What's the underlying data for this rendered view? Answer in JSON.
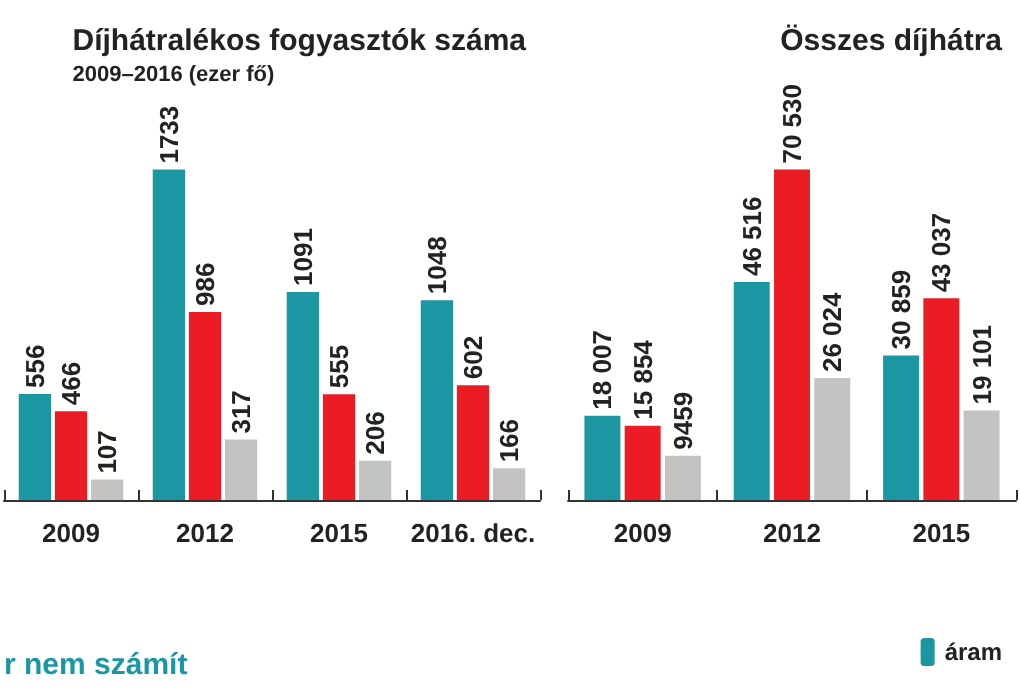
{
  "chart_data": [
    {
      "type": "bar",
      "title": "Díjhátralékos fogyasztók száma",
      "subtitle": "2009–2016 (ezer fő)",
      "categories": [
        "2009",
        "2012",
        "2015",
        "2016. dec."
      ],
      "data_labels": true,
      "annotations": [
        "r nem számít"
      ],
      "series": [
        {
          "color": "#1a97a3",
          "values": [
            556,
            1733,
            1091,
            1048
          ]
        },
        {
          "color": "#ec1c24",
          "values": [
            466,
            986,
            555,
            602
          ]
        },
        {
          "color": "#c3c3c3",
          "values": [
            107,
            317,
            206,
            166
          ]
        }
      ]
    },
    {
      "type": "bar",
      "title": "Összes díjhátra",
      "categories": [
        "2009",
        "2012",
        "2015"
      ],
      "legend": "bottom right",
      "series": [
        {
          "name": "áram",
          "color": "#1a97a3",
          "values": [
            18007,
            46516,
            30859
          ],
          "value_labels": [
            "18 007",
            "46 516",
            "30 859"
          ]
        },
        {
          "color": "#ec1c24",
          "values": [
            15854,
            70530,
            43037
          ],
          "value_labels": [
            "15 854",
            "70 530",
            "43 037"
          ]
        },
        {
          "color": "#c3c3c3",
          "values": [
            9459,
            26024,
            19101
          ],
          "value_labels": [
            "9459",
            "26 024",
            "19 101"
          ]
        }
      ]
    }
  ]
}
